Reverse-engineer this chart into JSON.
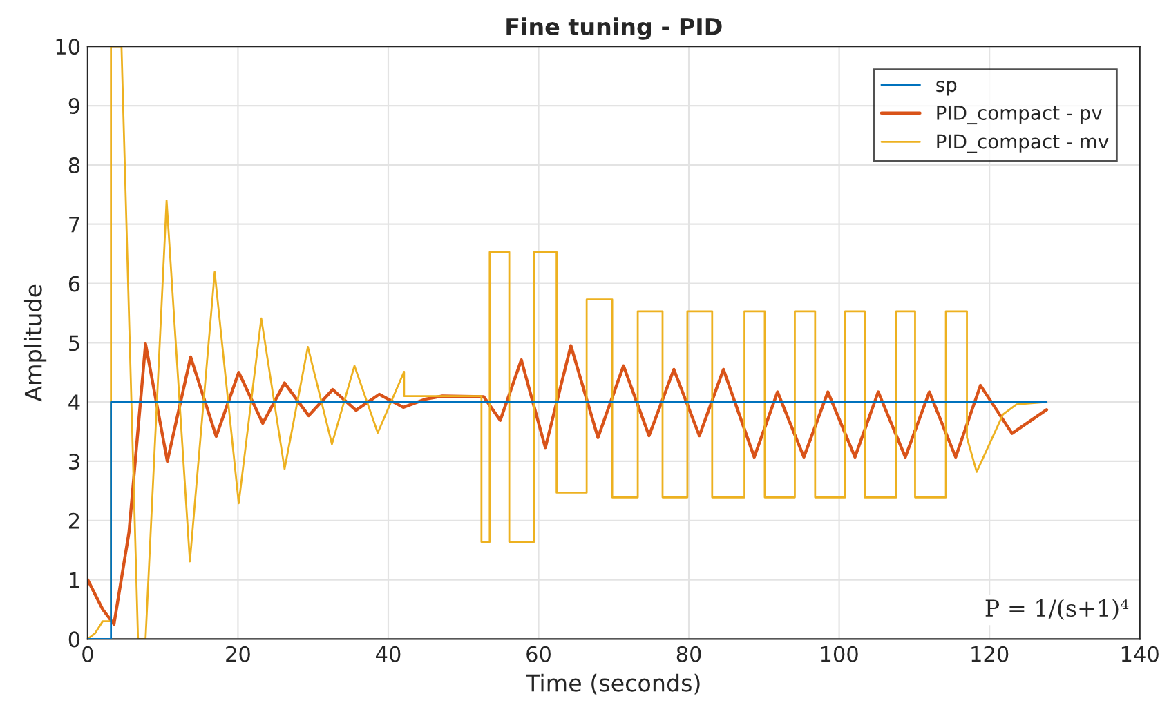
{
  "chart_data": {
    "type": "line",
    "title": "Fine tuning - PID",
    "xlabel": "Time (seconds)",
    "ylabel": "Amplitude",
    "xlim": [
      0,
      140
    ],
    "xticks": [
      0,
      20,
      40,
      60,
      80,
      100,
      120,
      140
    ],
    "ylim": [
      0,
      10
    ],
    "yticks": [
      0,
      1,
      2,
      3,
      4,
      5,
      6,
      7,
      8,
      9,
      10
    ],
    "grid": true,
    "legend": "top right",
    "line_style": "solid",
    "marker": "none",
    "annotations": [
      "P = 1/(s+1)⁴"
    ],
    "series": [
      {
        "name": "sp",
        "color": "#0072bd",
        "x": [
          0,
          3.1,
          3.1,
          127.6
        ],
        "values": [
          0,
          0,
          4,
          4
        ]
      },
      {
        "name": "PID_compact - pv",
        "color": "#d95319",
        "x": [
          0,
          2,
          3.5,
          5.5,
          7.7,
          10.6,
          13.7,
          17.1,
          20.1,
          23.3,
          26.2,
          29.4,
          32.6,
          35.7,
          38.8,
          42.0,
          45,
          47.2,
          52.7,
          54.9,
          57.7,
          60.9,
          64.3,
          67.9,
          71.3,
          74.7,
          78.0,
          81.4,
          84.6,
          88.7,
          91.8,
          95.3,
          98.5,
          102.1,
          105.2,
          108.8,
          112.0,
          115.5,
          118.8,
          123.0,
          127.6
        ],
        "values": [
          1.0,
          0.5,
          0.25,
          1.8,
          4.98,
          3.0,
          4.76,
          3.42,
          4.5,
          3.64,
          4.32,
          3.77,
          4.21,
          3.86,
          4.13,
          3.91,
          4.05,
          4.1,
          4.09,
          3.69,
          4.71,
          3.23,
          4.95,
          3.4,
          4.61,
          3.43,
          4.55,
          3.43,
          4.55,
          3.07,
          4.17,
          3.07,
          4.17,
          3.07,
          4.17,
          3.07,
          4.17,
          3.07,
          4.28,
          3.47,
          3.87
        ]
      },
      {
        "name": "PID_compact - mv",
        "color": "#edb120",
        "x": [
          0,
          1,
          2,
          3.1,
          3.1,
          4.5,
          6.7,
          7.7,
          10.5,
          13.6,
          16.9,
          20.1,
          23.1,
          26.2,
          29.3,
          32.5,
          35.5,
          38.6,
          42.1,
          42.1,
          47,
          52.4,
          52.4,
          53.5,
          53.5,
          56.1,
          56.1,
          59.4,
          59.4,
          62.4,
          62.4,
          66.4,
          66.4,
          69.8,
          69.8,
          73.2,
          73.2,
          76.5,
          76.5,
          79.8,
          79.8,
          83.1,
          83.1,
          87.4,
          87.4,
          90.1,
          90.1,
          94.1,
          94.1,
          96.8,
          96.8,
          100.8,
          100.8,
          103.4,
          103.4,
          107.6,
          107.6,
          110.1,
          110.1,
          114.2,
          114.2,
          117.0,
          117.0,
          118.3,
          121.8,
          123.6,
          127.6
        ],
        "values": [
          0,
          0.1,
          0.3,
          0.3,
          10,
          10,
          0,
          0,
          7.4,
          1.31,
          6.19,
          2.29,
          5.41,
          2.87,
          4.93,
          3.29,
          4.61,
          3.48,
          4.51,
          4.1,
          4.1,
          4.1,
          1.64,
          1.64,
          6.53,
          6.53,
          1.64,
          1.64,
          6.53,
          6.53,
          2.47,
          2.47,
          5.73,
          5.73,
          2.39,
          2.39,
          5.53,
          5.53,
          2.39,
          2.39,
          5.53,
          5.53,
          2.39,
          2.39,
          5.53,
          5.53,
          2.39,
          2.39,
          5.53,
          5.53,
          2.39,
          2.39,
          5.53,
          5.53,
          2.39,
          2.39,
          5.53,
          5.53,
          2.39,
          2.39,
          5.53,
          5.53,
          3.4,
          2.82,
          3.79,
          3.96,
          4.0
        ]
      }
    ]
  }
}
